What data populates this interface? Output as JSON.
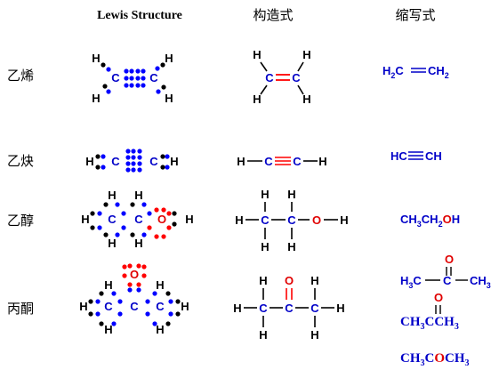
{
  "headers": {
    "lewis": "Lewis Structure",
    "structural": "构造式",
    "condensed": "缩写式"
  },
  "rows": [
    {
      "name": "乙烯"
    },
    {
      "name": "乙炔"
    },
    {
      "name": "乙醇"
    },
    {
      "name": "丙酮"
    }
  ],
  "atoms": {
    "H": "H",
    "C": "C",
    "O": "O"
  },
  "condensed": {
    "ethylene": {
      "part1": "H",
      "sub1": "2",
      "part2": "C",
      "part3": "CH",
      "sub2": "2"
    },
    "acetylene": {
      "left": "HC",
      "right": "CH"
    },
    "ethanol": {
      "ch": "CH",
      "sub1": "3",
      "ch2": "CH",
      "sub2": "2",
      "o": "O",
      "h": "H"
    },
    "acetone_a": {
      "h": "H",
      "sub": "3",
      "c": "C",
      "ch": "CH",
      "sub2": "3",
      "o": "O"
    },
    "acetone_b": {
      "ch": "CH",
      "sub": "3",
      "c": "C",
      "ch2": "CH",
      "sub2": "3",
      "o": "O"
    },
    "acetone_c": {
      "ch": "CH",
      "sub": "3",
      "co": "CO",
      "ch2": "CH",
      "sub2": "3",
      "o": "O"
    }
  },
  "colors": {
    "carbon_electron": "#0000ff",
    "hydrogen_electron": "#000000",
    "oxygen_electron": "#ff0000",
    "carbon_text": "#0000c8",
    "oxygen_text": "#e00000",
    "bond": "#000000"
  }
}
